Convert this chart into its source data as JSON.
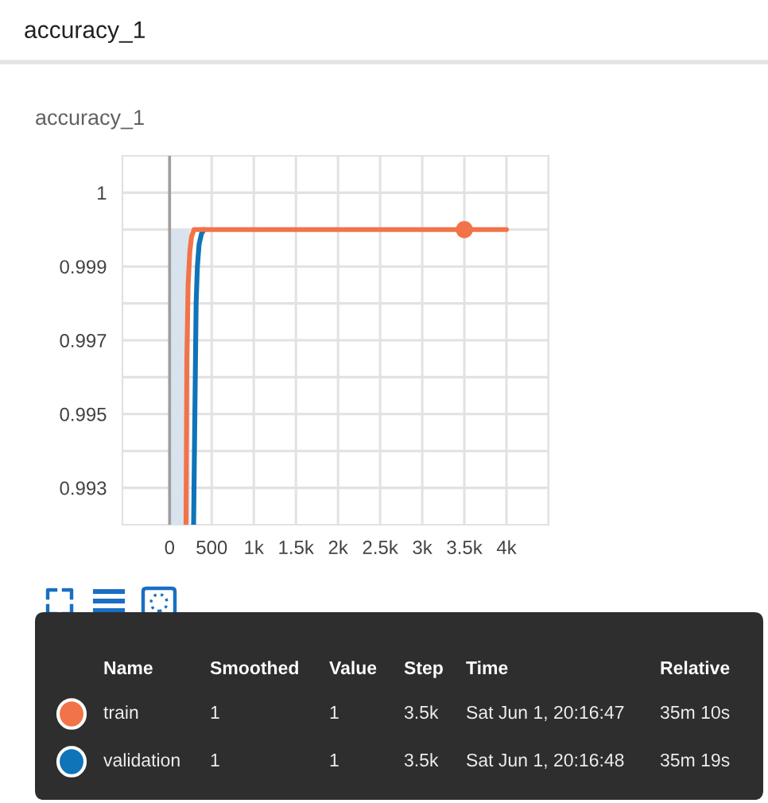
{
  "chart_data": {
    "type": "line",
    "title": "accuracy_1",
    "subtitle": "accuracy_1",
    "series": [
      {
        "type": "area",
        "x": [
          0,
          240
        ],
        "values": [
          1.0,
          1.0
        ],
        "color": "#d8e3ed"
      },
      {
        "name": "validation",
        "color": "#0f74b8",
        "x": [
          285,
          300,
          315,
          330,
          350,
          380,
          410
        ],
        "values": [
          0.992,
          0.995,
          0.998,
          0.999,
          0.9996,
          0.9999,
          1.0
        ]
      },
      {
        "name": "train",
        "color": "#f27349",
        "x": [
          195,
          205,
          220,
          240,
          260,
          290,
          4000
        ],
        "values": [
          0.992,
          0.9965,
          0.9985,
          0.9994,
          0.9998,
          1.0,
          1.0
        ]
      },
      {
        "type": "scatter",
        "color": "#f27349",
        "x": [
          3500
        ],
        "values": [
          1.0
        ],
        "marker": "circle"
      }
    ],
    "xlim": [
      -560,
      4500
    ],
    "xticks": [
      0,
      500,
      {
        "value": 1000,
        "label": "1k"
      },
      {
        "value": 1500,
        "label": "1.5k"
      },
      {
        "value": 2000,
        "label": "2k"
      },
      {
        "value": 2500,
        "label": "2.5k"
      },
      {
        "value": 3000,
        "label": "3k"
      },
      {
        "value": 3500,
        "label": "3.5k"
      },
      {
        "value": 4000,
        "label": "4k"
      },
      {
        "value": 4500,
        "label": null
      }
    ],
    "ylim": [
      0.992,
      1.002
    ],
    "yticks": [
      0.993,
      {
        "value": 0.994,
        "label": null
      },
      0.995,
      {
        "value": 0.996,
        "label": null
      },
      0.997,
      {
        "value": 0.998,
        "label": null
      },
      0.999,
      {
        "value": 1.0,
        "label": null
      },
      {
        "value": 1.001,
        "label": "1"
      }
    ],
    "grid": true,
    "legend": "bottom",
    "annotations": [
      "Name",
      "Smoothed",
      "Value",
      "Step",
      "Time",
      "Relative",
      "1",
      "1",
      "3.5k",
      "Sat Jun 1, 20:16:47",
      "35m 10s",
      "1",
      "1",
      "3.5k",
      "Sat Jun 1, 20:16:48",
      "35m 19s"
    ]
  }
}
